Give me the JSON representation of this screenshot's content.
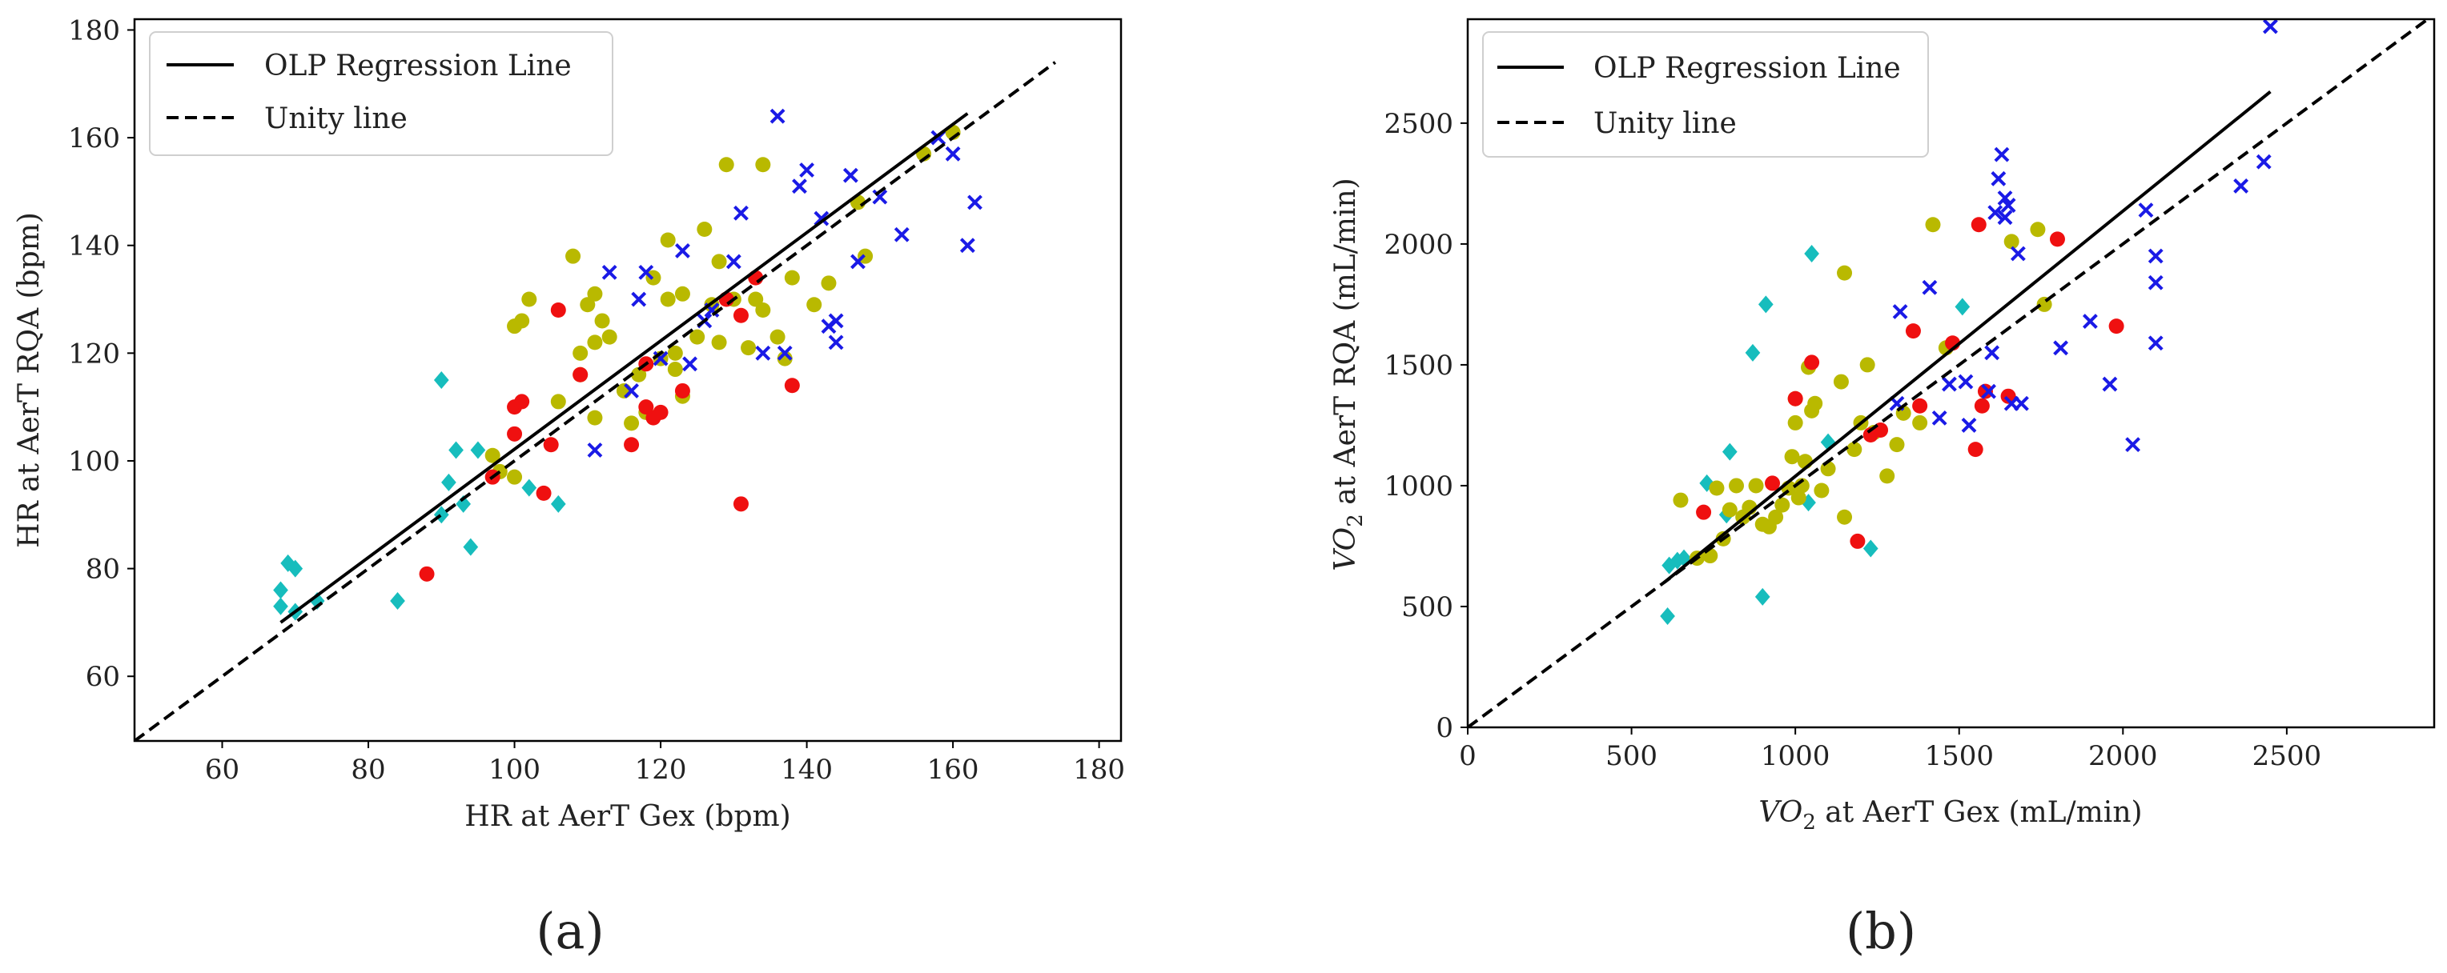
{
  "figure": {
    "caption_a": "(a)",
    "caption_b": "(b)"
  },
  "chart_data": [
    {
      "type": "scatter",
      "id": "a",
      "title": "",
      "xlabel": "HR at AerT Gex (bpm)",
      "ylabel": "HR at AerT RQA (bpm)",
      "xlim": [
        48,
        183
      ],
      "ylim": [
        48,
        182
      ],
      "xticks": [
        60,
        80,
        100,
        120,
        140,
        160,
        180
      ],
      "yticks": [
        60,
        80,
        100,
        120,
        140,
        160,
        180
      ],
      "legend_position": "top-left",
      "legend": [
        "OLP Regression Line",
        "Unity line"
      ],
      "colors": {
        "cyan": "#17bdbd",
        "yellow": "#b9b900",
        "red": "#ef1010",
        "blue": "#1a1ae6",
        "line": "#000000"
      },
      "regression_line": {
        "x": [
          68,
          162
        ],
        "y": [
          70,
          164.5
        ]
      },
      "unity_line": {
        "x": [
          48,
          174
        ],
        "y": [
          48,
          174
        ]
      },
      "series": [
        {
          "name": "cyan",
          "marker": "diamond",
          "points": [
            [
              68,
              76
            ],
            [
              68,
              73
            ],
            [
              69,
              81
            ],
            [
              70,
              80
            ],
            [
              70,
              72
            ],
            [
              73,
              74
            ],
            [
              84,
              74
            ],
            [
              90,
              115
            ],
            [
              90,
              90
            ],
            [
              91,
              96
            ],
            [
              92,
              102
            ],
            [
              93,
              92
            ],
            [
              94,
              84
            ],
            [
              95,
              102
            ],
            [
              102,
              95
            ],
            [
              106,
              92
            ]
          ]
        },
        {
          "name": "yellow",
          "marker": "circle",
          "points": [
            [
              97,
              101
            ],
            [
              98,
              98
            ],
            [
              100,
              97
            ],
            [
              100,
              125
            ],
            [
              101,
              126
            ],
            [
              102,
              130
            ],
            [
              106,
              111
            ],
            [
              108,
              138
            ],
            [
              109,
              120
            ],
            [
              109,
              116
            ],
            [
              110,
              129
            ],
            [
              111,
              131
            ],
            [
              111,
              122
            ],
            [
              111,
              108
            ],
            [
              112,
              126
            ],
            [
              113,
              123
            ],
            [
              115,
              113
            ],
            [
              116,
              107
            ],
            [
              117,
              116
            ],
            [
              118,
              109
            ],
            [
              119,
              134
            ],
            [
              120,
              119
            ],
            [
              121,
              130
            ],
            [
              121,
              141
            ],
            [
              122,
              117
            ],
            [
              122,
              120
            ],
            [
              123,
              112
            ],
            [
              123,
              131
            ],
            [
              125,
              123
            ],
            [
              126,
              143
            ],
            [
              127,
              129
            ],
            [
              128,
              137
            ],
            [
              128,
              122
            ],
            [
              129,
              155
            ],
            [
              130,
              130
            ],
            [
              132,
              121
            ],
            [
              133,
              130
            ],
            [
              134,
              155
            ],
            [
              134,
              128
            ],
            [
              136,
              123
            ],
            [
              137,
              119
            ],
            [
              138,
              134
            ],
            [
              141,
              129
            ],
            [
              143,
              133
            ],
            [
              147,
              148
            ],
            [
              148,
              138
            ],
            [
              156,
              157
            ],
            [
              160,
              161
            ]
          ]
        },
        {
          "name": "red",
          "marker": "circle",
          "points": [
            [
              88,
              79
            ],
            [
              97,
              97
            ],
            [
              100,
              105
            ],
            [
              100,
              110
            ],
            [
              101,
              111
            ],
            [
              104,
              94
            ],
            [
              105,
              103
            ],
            [
              106,
              128
            ],
            [
              109,
              116
            ],
            [
              116,
              103
            ],
            [
              118,
              118
            ],
            [
              118,
              110
            ],
            [
              119,
              108
            ],
            [
              120,
              109
            ],
            [
              123,
              113
            ],
            [
              129,
              130
            ],
            [
              131,
              92
            ],
            [
              131,
              127
            ],
            [
              133,
              134
            ],
            [
              138,
              114
            ]
          ]
        },
        {
          "name": "blue",
          "marker": "x",
          "points": [
            [
              111,
              102
            ],
            [
              113,
              135
            ],
            [
              116,
              113
            ],
            [
              117,
              130
            ],
            [
              118,
              135
            ],
            [
              120,
              119
            ],
            [
              123,
              139
            ],
            [
              124,
              118
            ],
            [
              126,
              126
            ],
            [
              127,
              128
            ],
            [
              130,
              137
            ],
            [
              131,
              146
            ],
            [
              134,
              120
            ],
            [
              136,
              164
            ],
            [
              137,
              120
            ],
            [
              139,
              151
            ],
            [
              140,
              154
            ],
            [
              142,
              145
            ],
            [
              143,
              125
            ],
            [
              144,
              126
            ],
            [
              144,
              122
            ],
            [
              146,
              153
            ],
            [
              147,
              137
            ],
            [
              150,
              149
            ],
            [
              153,
              142
            ],
            [
              158,
              160
            ],
            [
              160,
              157
            ],
            [
              162,
              140
            ],
            [
              163,
              148
            ]
          ]
        }
      ]
    },
    {
      "type": "scatter",
      "id": "b",
      "title": "",
      "xlabel": "VO2 at AerT Gex (mL/min)",
      "ylabel": "VO2 at AerT RQA (mL/min)",
      "xlabel_parts": {
        "var": "VO",
        "sub": "2",
        "rest": " at AerT Gex (mL/min)"
      },
      "ylabel_parts": {
        "var": "VO",
        "sub": "2",
        "rest": " at AerT RQA (mL/min)"
      },
      "xlim": [
        0,
        2950
      ],
      "ylim": [
        0,
        2930
      ],
      "xticks": [
        0,
        500,
        1000,
        1500,
        2000,
        2500
      ],
      "yticks": [
        0,
        500,
        1000,
        1500,
        2000,
        2500
      ],
      "legend_position": "top-left",
      "legend": [
        "OLP Regression Line",
        "Unity line"
      ],
      "colors": {
        "cyan": "#17bdbd",
        "yellow": "#b9b900",
        "red": "#ef1010",
        "blue": "#1a1ae6",
        "line": "#000000"
      },
      "regression_line": {
        "x": [
          600,
          2450
        ],
        "y": [
          600,
          2630
        ]
      },
      "unity_line": {
        "x": [
          0,
          2950
        ],
        "y": [
          0,
          2950
        ]
      },
      "series": [
        {
          "name": "cyan",
          "marker": "diamond",
          "points": [
            [
              610,
              460
            ],
            [
              615,
              670
            ],
            [
              640,
              690
            ],
            [
              660,
              700
            ],
            [
              730,
              1010
            ],
            [
              790,
              880
            ],
            [
              800,
              1140
            ],
            [
              870,
              1550
            ],
            [
              900,
              540
            ],
            [
              910,
              1750
            ],
            [
              1040,
              930
            ],
            [
              1050,
              1960
            ],
            [
              1100,
              1180
            ],
            [
              1230,
              740
            ],
            [
              1510,
              1740
            ]
          ]
        },
        {
          "name": "yellow",
          "marker": "circle",
          "points": [
            [
              650,
              940
            ],
            [
              700,
              700
            ],
            [
              740,
              710
            ],
            [
              760,
              990
            ],
            [
              780,
              780
            ],
            [
              800,
              900
            ],
            [
              820,
              1000
            ],
            [
              840,
              870
            ],
            [
              860,
              910
            ],
            [
              880,
              1000
            ],
            [
              900,
              840
            ],
            [
              920,
              830
            ],
            [
              940,
              870
            ],
            [
              960,
              920
            ],
            [
              980,
              990
            ],
            [
              990,
              1120
            ],
            [
              1000,
              1260
            ],
            [
              1000,
              1360
            ],
            [
              1010,
              950
            ],
            [
              1020,
              1000
            ],
            [
              1030,
              1100
            ],
            [
              1040,
              1490
            ],
            [
              1050,
              1310
            ],
            [
              1060,
              1340
            ],
            [
              1080,
              980
            ],
            [
              1100,
              1070
            ],
            [
              1140,
              1430
            ],
            [
              1150,
              1880
            ],
            [
              1150,
              870
            ],
            [
              1180,
              1150
            ],
            [
              1200,
              1260
            ],
            [
              1220,
              1500
            ],
            [
              1240,
              1220
            ],
            [
              1280,
              1040
            ],
            [
              1310,
              1170
            ],
            [
              1330,
              1300
            ],
            [
              1380,
              1260
            ],
            [
              1420,
              2080
            ],
            [
              1460,
              1570
            ],
            [
              1660,
              2010
            ],
            [
              1740,
              2060
            ],
            [
              1760,
              1750
            ]
          ]
        },
        {
          "name": "red",
          "marker": "circle",
          "points": [
            [
              720,
              890
            ],
            [
              930,
              1010
            ],
            [
              1000,
              1360
            ],
            [
              1050,
              1510
            ],
            [
              1190,
              770
            ],
            [
              1230,
              1210
            ],
            [
              1260,
              1230
            ],
            [
              1360,
              1640
            ],
            [
              1380,
              1330
            ],
            [
              1480,
              1590
            ],
            [
              1550,
              1150
            ],
            [
              1560,
              2080
            ],
            [
              1570,
              1330
            ],
            [
              1580,
              1390
            ],
            [
              1650,
              1370
            ],
            [
              1800,
              2020
            ],
            [
              1980,
              1660
            ]
          ]
        },
        {
          "name": "blue",
          "marker": "x",
          "points": [
            [
              1310,
              1340
            ],
            [
              1320,
              1720
            ],
            [
              1410,
              1820
            ],
            [
              1440,
              1280
            ],
            [
              1470,
              1420
            ],
            [
              1520,
              1430
            ],
            [
              1530,
              1250
            ],
            [
              1590,
              1390
            ],
            [
              1600,
              1550
            ],
            [
              1610,
              2130
            ],
            [
              1620,
              2270
            ],
            [
              1630,
              2370
            ],
            [
              1640,
              2190
            ],
            [
              1640,
              2110
            ],
            [
              1650,
              2160
            ],
            [
              1660,
              1340
            ],
            [
              1680,
              1960
            ],
            [
              1690,
              1340
            ],
            [
              1810,
              1570
            ],
            [
              1900,
              1680
            ],
            [
              1960,
              1420
            ],
            [
              2030,
              1170
            ],
            [
              2070,
              2140
            ],
            [
              2100,
              1950
            ],
            [
              2100,
              1840
            ],
            [
              2100,
              1590
            ],
            [
              2360,
              2240
            ],
            [
              2430,
              2340
            ],
            [
              2450,
              2900
            ]
          ]
        }
      ]
    }
  ]
}
